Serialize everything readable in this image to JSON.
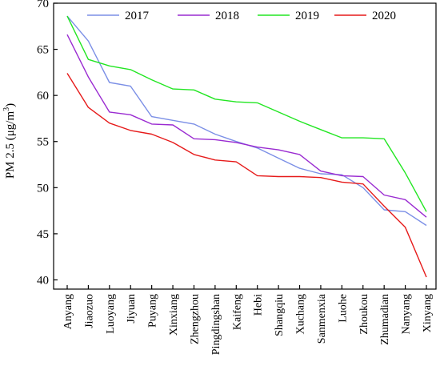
{
  "chart_data": {
    "type": "line",
    "categories": [
      "Anyang",
      "Jiaozuo",
      "Luoyang",
      "Jiyuan",
      "Puyang",
      "Xinxiang",
      "Zhengzhou",
      "Pingdingshan",
      "Kaifeng",
      "Hebi",
      "Shangqiu",
      "Xuchang",
      "Sanmenxia",
      "Luohe",
      "Zhoukou",
      "Zhumadian",
      "Nanyang",
      "Xinyang"
    ],
    "series": [
      {
        "name": "2017",
        "color": "#7b8fe6",
        "values": [
          68.6,
          65.9,
          61.4,
          61.0,
          57.7,
          57.3,
          56.9,
          55.8,
          55.0,
          54.3,
          53.2,
          52.1,
          51.5,
          51.4,
          50.0,
          47.6,
          47.4,
          45.9
        ]
      },
      {
        "name": "2018",
        "color": "#9a2bd1",
        "values": [
          66.6,
          62.0,
          58.2,
          57.9,
          56.9,
          56.8,
          55.3,
          55.2,
          54.9,
          54.4,
          54.1,
          53.6,
          51.8,
          51.3,
          51.2,
          49.2,
          48.7,
          46.8
        ]
      },
      {
        "name": "2019",
        "color": "#22e622",
        "values": [
          68.6,
          63.9,
          63.2,
          62.8,
          61.7,
          60.7,
          60.6,
          59.6,
          59.3,
          59.2,
          58.2,
          57.2,
          56.3,
          55.4,
          55.4,
          55.3,
          51.6,
          47.4
        ]
      },
      {
        "name": "2020",
        "color": "#e61a1a",
        "values": [
          62.4,
          58.7,
          57.0,
          56.2,
          55.8,
          54.9,
          53.6,
          53.0,
          52.8,
          51.3,
          51.2,
          51.2,
          51.1,
          50.6,
          50.4,
          48.0,
          45.7,
          40.3
        ]
      }
    ],
    "ylabel_main": "PM 2.5 (μg/m",
    "ylabel_sup": "3",
    "ylabel_close": ")",
    "xlabel": "",
    "ylim": [
      39,
      70
    ],
    "yticks": [
      "40",
      "45",
      "50",
      "55",
      "60",
      "65",
      "70"
    ],
    "legend_position": "top"
  }
}
